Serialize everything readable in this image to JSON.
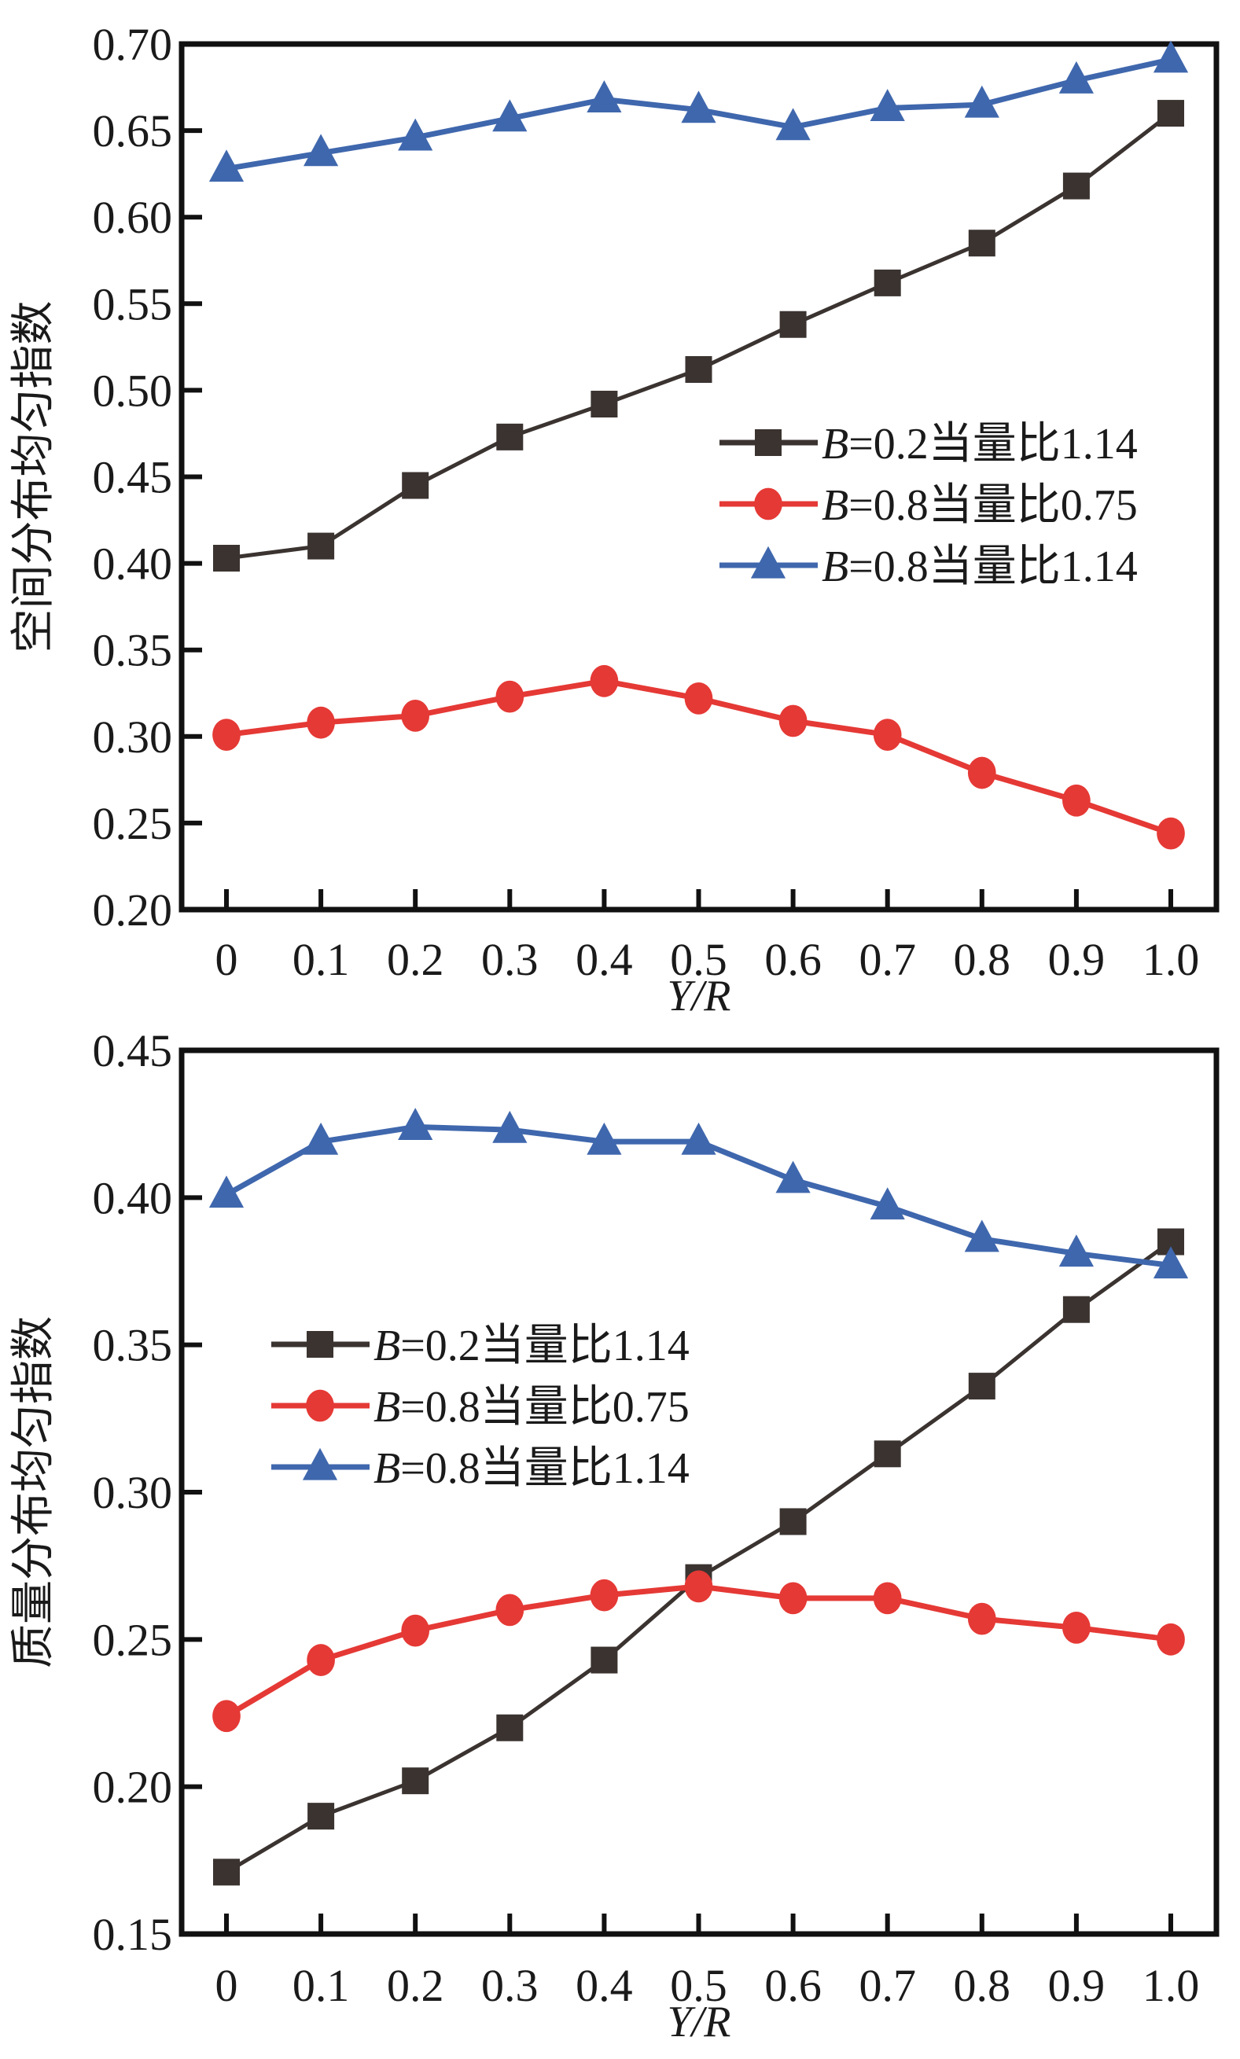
{
  "chart_data": [
    {
      "type": "line",
      "title": "",
      "xlabel": "Y/R",
      "ylabel": "空间分布均匀指数",
      "xlim": [
        -0.05,
        1.05
      ],
      "ylim": [
        0.2,
        0.7
      ],
      "x": [
        0,
        0.1,
        0.2,
        0.3,
        0.4,
        0.5,
        0.6,
        0.7,
        0.8,
        0.9,
        1.0
      ],
      "xtick_labels": [
        "0",
        "0.1",
        "0.2",
        "0.3",
        "0.4",
        "0.5",
        "0.6",
        "0.7",
        "0.8",
        "0.9",
        "1.0"
      ],
      "yticks": [
        0.2,
        0.25,
        0.3,
        0.35,
        0.4,
        0.45,
        0.5,
        0.55,
        0.6,
        0.65,
        0.7
      ],
      "ytick_labels": [
        "0.20",
        "0.25",
        "0.30",
        "0.35",
        "0.40",
        "0.45",
        "0.50",
        "0.55",
        "0.60",
        "0.65",
        "0.70"
      ],
      "legend_position": "center-right",
      "series": [
        {
          "name": "B=0.2当量比1.14",
          "name_italic": "B",
          "name_rest": "=0.2当量比1.14",
          "marker": "square",
          "color": "#3a3330",
          "values": [
            0.403,
            0.41,
            0.445,
            0.473,
            0.492,
            0.512,
            0.538,
            0.562,
            0.585,
            0.618,
            0.66
          ]
        },
        {
          "name": "B=0.8当量比0.75",
          "name_italic": "B",
          "name_rest": "=0.8当量比0.75",
          "marker": "circle",
          "color": "#e53935",
          "values": [
            0.301,
            0.308,
            0.312,
            0.323,
            0.332,
            0.322,
            0.309,
            0.301,
            0.279,
            0.263,
            0.244
          ]
        },
        {
          "name": "B=0.8当量比1.14",
          "name_italic": "B",
          "name_rest": "=0.8当量比1.14",
          "marker": "triangle",
          "color": "#3f67ad",
          "values": [
            0.628,
            0.637,
            0.646,
            0.657,
            0.668,
            0.662,
            0.652,
            0.663,
            0.665,
            0.679,
            0.691
          ]
        }
      ]
    },
    {
      "type": "line",
      "title": "",
      "xlabel": "Y/R",
      "ylabel": "质量分布均匀指数",
      "xlim": [
        -0.05,
        1.05
      ],
      "ylim": [
        0.15,
        0.45
      ],
      "x": [
        0,
        0.1,
        0.2,
        0.3,
        0.4,
        0.5,
        0.6,
        0.7,
        0.8,
        0.9,
        1.0
      ],
      "xtick_labels": [
        "0",
        "0.1",
        "0.2",
        "0.3",
        "0.4",
        "0.5",
        "0.6",
        "0.7",
        "0.8",
        "0.9",
        "1.0"
      ],
      "yticks": [
        0.15,
        0.2,
        0.25,
        0.3,
        0.35,
        0.4,
        0.45
      ],
      "ytick_labels": [
        "0.15",
        "0.20",
        "0.25",
        "0.30",
        "0.35",
        "0.40",
        "0.45"
      ],
      "legend_position": "center-left",
      "series": [
        {
          "name": "B=0.2当量比1.14",
          "name_italic": "B",
          "name_rest": "=0.2当量比1.14",
          "marker": "square",
          "color": "#3a3330",
          "values": [
            0.171,
            0.19,
            0.202,
            0.22,
            0.243,
            0.271,
            0.29,
            0.313,
            0.336,
            0.362,
            0.385
          ]
        },
        {
          "name": "B=0.8当量比0.75",
          "name_italic": "B",
          "name_rest": "=0.8当量比0.75",
          "marker": "circle",
          "color": "#e53935",
          "values": [
            0.224,
            0.243,
            0.253,
            0.26,
            0.265,
            0.268,
            0.264,
            0.264,
            0.257,
            0.254,
            0.25
          ]
        },
        {
          "name": "B=0.8当量比1.14",
          "name_italic": "B",
          "name_rest": "=0.8当量比1.14",
          "marker": "triangle",
          "color": "#3f67ad",
          "values": [
            0.401,
            0.419,
            0.424,
            0.423,
            0.419,
            0.419,
            0.406,
            0.397,
            0.386,
            0.381,
            0.377
          ]
        }
      ]
    }
  ]
}
